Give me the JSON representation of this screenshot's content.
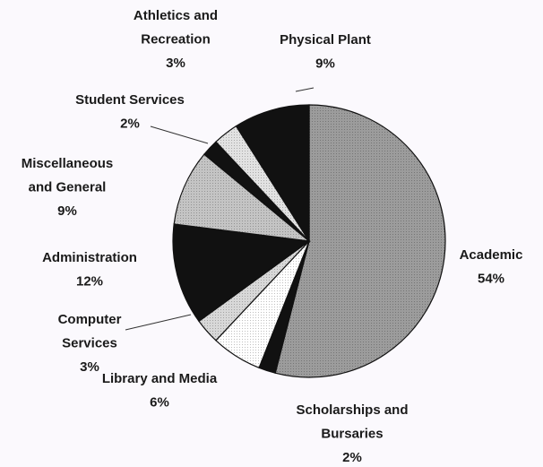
{
  "chart_data": {
    "type": "pie",
    "categories": [
      "Academic",
      "Scholarships and Bursaries",
      "Library and Media",
      "Computer Services",
      "Administration",
      "Miscellaneous and General",
      "Student Services",
      "Athletics and Recreation",
      "Physical Plant"
    ],
    "values": [
      54,
      2,
      6,
      3,
      12,
      9,
      2,
      3,
      9
    ],
    "value_labels": [
      "54%",
      "2%",
      "6%",
      "3%",
      "12%",
      "9%",
      "2%",
      "3%",
      "9%"
    ],
    "colors": [
      "#9c9c9c",
      "#111111",
      "#ffffff",
      "#d8d8d8",
      "#111111",
      "#c4c4c4",
      "#111111",
      "#e2e2e2",
      "#111111"
    ]
  }
}
